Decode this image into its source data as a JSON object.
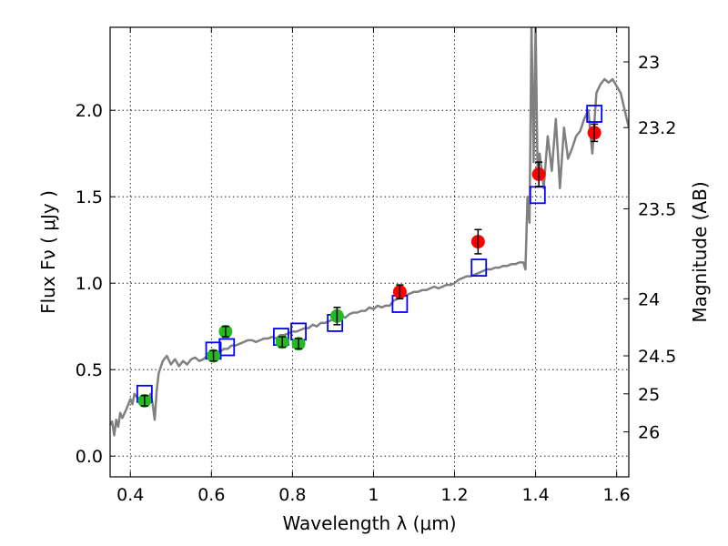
{
  "chart_data": {
    "type": "scatter",
    "title": "",
    "xlabel": "Wavelength  λ (μm)",
    "ylabel": "Flux  Fν  ( μJy )",
    "y2label": "Magnitude (AB)",
    "xlim": [
      0.35,
      1.63
    ],
    "ylim": [
      -0.12,
      2.48
    ],
    "xticks": [
      0.4,
      0.6,
      0.8,
      1.0,
      1.2,
      1.4,
      1.6
    ],
    "xtick_labels": [
      "0.4",
      "0.6",
      "0.8",
      "1",
      "1.2",
      "1.4",
      "1.6"
    ],
    "yticks": [
      0.0,
      0.5,
      1.0,
      1.5,
      2.0
    ],
    "ytick_labels": [
      "0.0",
      "0.5",
      "1.0",
      "1.5",
      "2.0"
    ],
    "y2ticks": [
      {
        "flux": 2.28,
        "label": "23"
      },
      {
        "flux": 1.9,
        "label": "23.2"
      },
      {
        "flux": 1.43,
        "label": "23.5"
      },
      {
        "flux": 0.91,
        "label": "24"
      },
      {
        "flux": 0.58,
        "label": "24.5"
      },
      {
        "flux": 0.36,
        "label": "25"
      },
      {
        "flux": 0.14,
        "label": "26"
      }
    ],
    "grid": true,
    "colors": {
      "model_line": "#808080",
      "model_photometry": "#0000ff",
      "optical_points": "#22bb22",
      "nir_points": "#ff0000",
      "errorbar": "#000000"
    },
    "series": [
      {
        "kind": "line",
        "x": [
          0.35,
          0.355,
          0.36,
          0.365,
          0.37,
          0.375,
          0.38,
          0.39,
          0.4,
          0.405,
          0.41,
          0.42,
          0.43,
          0.44,
          0.45,
          0.455,
          0.46,
          0.465,
          0.47,
          0.48,
          0.49,
          0.5,
          0.51,
          0.52,
          0.53,
          0.54,
          0.55,
          0.56,
          0.57,
          0.58,
          0.59,
          0.6,
          0.61,
          0.62,
          0.63,
          0.64,
          0.65,
          0.66,
          0.67,
          0.68,
          0.69,
          0.7,
          0.71,
          0.72,
          0.73,
          0.74,
          0.75,
          0.76,
          0.77,
          0.78,
          0.79,
          0.8,
          0.81,
          0.82,
          0.83,
          0.84,
          0.85,
          0.86,
          0.87,
          0.88,
          0.89,
          0.9,
          0.91,
          0.92,
          0.93,
          0.94,
          0.95,
          0.96,
          0.97,
          0.98,
          0.99,
          1.0,
          1.01,
          1.02,
          1.03,
          1.04,
          1.05,
          1.06,
          1.07,
          1.08,
          1.09,
          1.1,
          1.11,
          1.12,
          1.13,
          1.14,
          1.15,
          1.16,
          1.17,
          1.18,
          1.19,
          1.2,
          1.21,
          1.22,
          1.23,
          1.24,
          1.25,
          1.26,
          1.27,
          1.28,
          1.29,
          1.3,
          1.31,
          1.32,
          1.33,
          1.34,
          1.35,
          1.36,
          1.37,
          1.375,
          1.38,
          1.385,
          1.39,
          1.395,
          1.4,
          1.405,
          1.41,
          1.42,
          1.43,
          1.44,
          1.45,
          1.46,
          1.47,
          1.48,
          1.49,
          1.5,
          1.51,
          1.52,
          1.53,
          1.54,
          1.55,
          1.56,
          1.57,
          1.58,
          1.59,
          1.6,
          1.61,
          1.62,
          1.63
        ],
        "y": [
          0.18,
          0.2,
          0.12,
          0.21,
          0.17,
          0.25,
          0.22,
          0.27,
          0.33,
          0.3,
          0.36,
          0.33,
          0.35,
          0.32,
          0.36,
          0.3,
          0.21,
          0.38,
          0.48,
          0.55,
          0.58,
          0.53,
          0.56,
          0.52,
          0.55,
          0.53,
          0.56,
          0.57,
          0.55,
          0.56,
          0.58,
          0.6,
          0.59,
          0.6,
          0.62,
          0.62,
          0.64,
          0.64,
          0.65,
          0.66,
          0.67,
          0.67,
          0.66,
          0.67,
          0.68,
          0.68,
          0.69,
          0.68,
          0.7,
          0.7,
          0.71,
          0.72,
          0.72,
          0.73,
          0.74,
          0.74,
          0.76,
          0.75,
          0.77,
          0.77,
          0.78,
          0.79,
          0.8,
          0.81,
          0.8,
          0.82,
          0.83,
          0.83,
          0.84,
          0.84,
          0.86,
          0.85,
          0.87,
          0.86,
          0.87,
          0.87,
          0.9,
          0.91,
          0.92,
          0.93,
          0.94,
          0.95,
          0.95,
          0.96,
          0.96,
          0.97,
          0.98,
          0.97,
          0.98,
          0.99,
          0.99,
          1.0,
          1.02,
          1.03,
          1.04,
          1.04,
          1.05,
          1.06,
          1.07,
          1.08,
          1.08,
          1.09,
          1.09,
          1.1,
          1.1,
          1.11,
          1.11,
          1.12,
          1.12,
          1.08,
          1.5,
          1.35,
          2.5,
          1.7,
          2.5,
          1.6,
          1.75,
          1.55,
          1.85,
          1.65,
          1.95,
          1.55,
          1.9,
          1.72,
          1.78,
          1.85,
          1.88,
          1.95,
          2.0,
          1.75,
          2.1,
          2.15,
          2.18,
          2.16,
          2.18,
          2.14,
          2.1,
          2.0,
          1.9
        ]
      },
      {
        "kind": "squares",
        "x": [
          0.435,
          0.605,
          0.638,
          0.772,
          0.815,
          0.905,
          1.065,
          1.26,
          1.405,
          1.545
        ],
        "y": [
          0.36,
          0.61,
          0.63,
          0.69,
          0.72,
          0.77,
          0.88,
          1.09,
          1.51,
          1.98
        ]
      },
      {
        "kind": "points",
        "x": [
          0.435,
          0.605,
          0.635,
          0.775,
          0.815,
          0.91
        ],
        "y": [
          0.32,
          0.58,
          0.72,
          0.66,
          0.65,
          0.81
        ],
        "err": [
          0.03,
          0.03,
          0.03,
          0.03,
          0.03,
          0.05
        ]
      },
      {
        "kind": "points",
        "x": [
          1.065,
          1.258,
          1.408,
          1.545
        ],
        "y": [
          0.95,
          1.24,
          1.63,
          1.87
        ],
        "err": [
          0.04,
          0.07,
          0.07,
          0.05
        ]
      }
    ]
  }
}
